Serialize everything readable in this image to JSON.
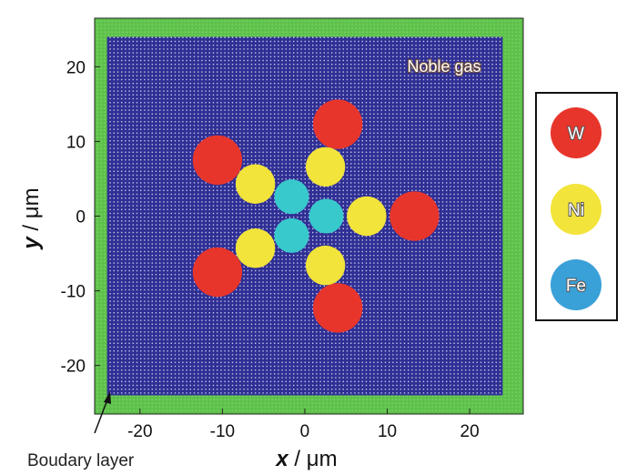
{
  "chart_data": {
    "type": "scatter",
    "title": "",
    "xlabel_var": "x",
    "xlabel_unit": " / μm",
    "ylabel_var": "y",
    "ylabel_unit": " / μm",
    "xlim": [
      -25.5,
      26.5
    ],
    "ylim": [
      -26.5,
      26.5
    ],
    "x_ticks": [
      -20,
      -10,
      0,
      10,
      20
    ],
    "y_ticks": [
      -20,
      -10,
      0,
      10,
      20
    ],
    "x_tick_labels": [
      "-20",
      "-10",
      "0",
      "10",
      "20"
    ],
    "y_tick_labels": [
      "-20",
      "-10",
      "0",
      "10",
      "20"
    ],
    "domain_half_width": 24,
    "boundary_layer_label": "Boudary layer",
    "region_label": "Noble gas",
    "colors": {
      "boundary": "#5ec24a",
      "noble_gas": "#2f2f95",
      "W": "#e8352b",
      "Ni": "#f2e43a",
      "Fe": "#38c9cc",
      "legend_Fe": "#3aa0d8"
    },
    "legend": [
      {
        "label": "W",
        "color": "#e8352b"
      },
      {
        "label": "Ni",
        "color": "#f2e43a"
      },
      {
        "label": "Fe",
        "color": "#3aa0d8"
      }
    ],
    "series": [
      {
        "name": "W",
        "points": [
          {
            "x": 4,
            "y": 12.3
          },
          {
            "x": -10.6,
            "y": 7.5
          },
          {
            "x": 13.3,
            "y": 0
          },
          {
            "x": -10.6,
            "y": -7.5
          },
          {
            "x": 4,
            "y": -12.3
          }
        ],
        "radius": 3.0
      },
      {
        "name": "Ni",
        "points": [
          {
            "x": 2.5,
            "y": 6.6
          },
          {
            "x": -6,
            "y": 4.3
          },
          {
            "x": 7.5,
            "y": 0
          },
          {
            "x": -6,
            "y": -4.3
          },
          {
            "x": 2.5,
            "y": -6.6
          }
        ],
        "radius": 2.4
      },
      {
        "name": "Fe",
        "points": [
          {
            "x": -1.6,
            "y": 2.6
          },
          {
            "x": 2.6,
            "y": 0
          },
          {
            "x": -1.6,
            "y": -2.6
          }
        ],
        "radius": 2.1
      }
    ]
  }
}
